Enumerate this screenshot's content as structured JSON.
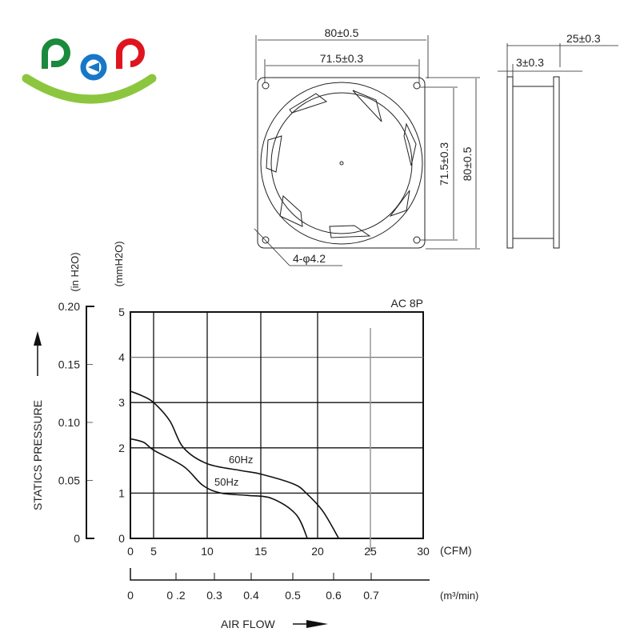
{
  "logo": {
    "text": "pep",
    "colors": [
      "#1a8a3c",
      "#1677c8",
      "#e0141e"
    ],
    "smile_color": "#8cc63f"
  },
  "front_view": {
    "width_outer": "80±0.5",
    "width_holes": "71.5±0.3",
    "height_holes": "71.5±0.3",
    "height_outer": "80±0.5",
    "hole_callout": "4-φ4.2"
  },
  "side_view": {
    "depth": "25±0.3",
    "flange": "3±0.3"
  },
  "chart_data": {
    "type": "line",
    "title": "AC 8P",
    "xlabel": "AIR FLOW",
    "x_unit_primary": "(CFM)",
    "x_unit_secondary": "(m³/min)",
    "ylabel": "STATICS PRESSURE",
    "y_unit_primary": "(mmH2O)",
    "y_unit_secondary": "(in H2O)",
    "xlim": [
      0,
      30
    ],
    "ylim": [
      0,
      5
    ],
    "x_ticks": [
      "0",
      "5",
      "10",
      "15",
      "20",
      "25",
      "30"
    ],
    "x2_ticks": [
      "0",
      "0 .2",
      "0.3",
      "0.4",
      "0.5",
      "0.6",
      "0.7"
    ],
    "y_ticks": [
      "0",
      "1",
      "2",
      "3",
      "4",
      "5"
    ],
    "y2_ticks": [
      "0",
      "0.05",
      "0.10",
      "0.15",
      "0.20"
    ],
    "grid": true,
    "series": [
      {
        "name": "60Hz",
        "points": [
          [
            0,
            3.25
          ],
          [
            2.5,
            3.15
          ],
          [
            5,
            3.0
          ],
          [
            6.5,
            2.6
          ],
          [
            7.8,
            2.0
          ],
          [
            10,
            1.65
          ],
          [
            13.1,
            1.5
          ],
          [
            15,
            1.42
          ],
          [
            17.9,
            1.2
          ],
          [
            19,
            1.0
          ],
          [
            20.5,
            0.6
          ],
          [
            22,
            0
          ]
        ]
      },
      {
        "name": "50Hz",
        "points": [
          [
            0,
            2.2
          ],
          [
            2.9,
            2.12
          ],
          [
            5,
            1.95
          ],
          [
            7.8,
            1.59
          ],
          [
            9.6,
            1.17
          ],
          [
            11.3,
            1.0
          ],
          [
            13.7,
            0.95
          ],
          [
            16,
            0.88
          ],
          [
            18.1,
            0.53
          ],
          [
            19.1,
            0
          ]
        ]
      }
    ]
  }
}
